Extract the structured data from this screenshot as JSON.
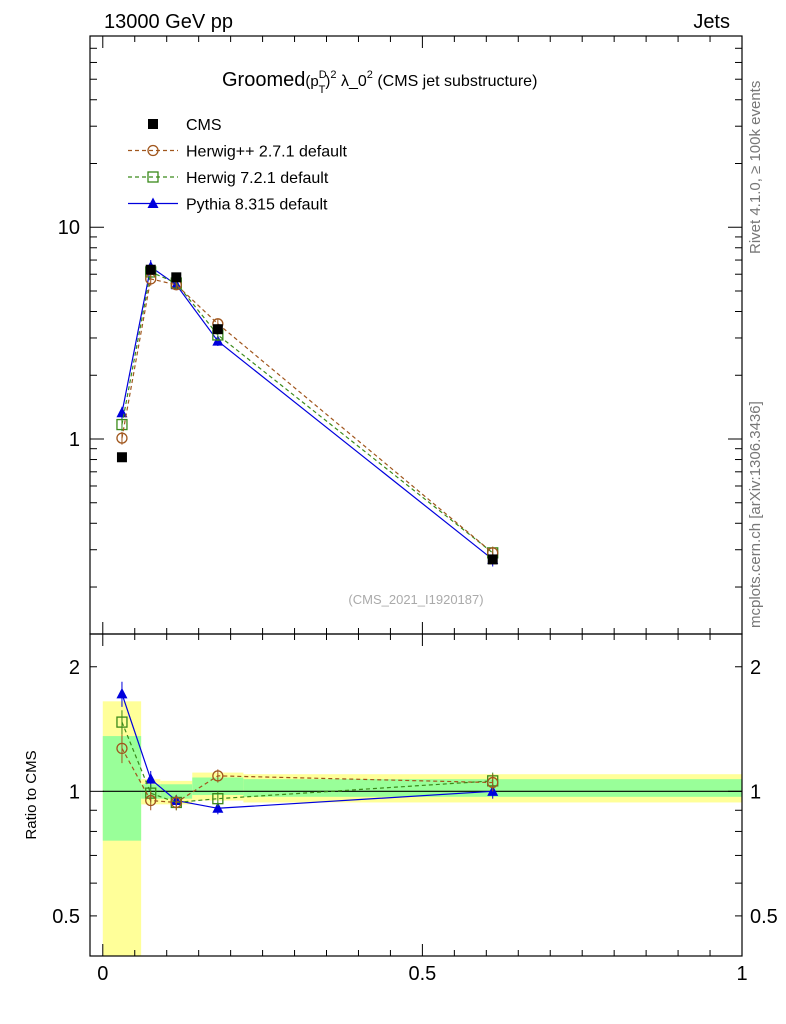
{
  "header": {
    "left": "13000 GeV pp",
    "right": "Jets"
  },
  "side_labels": {
    "rivet": "Rivet 4.1.0, ≥ 100k events",
    "mcplots": "mcplots.cern.ch [arXiv:1306.3436]"
  },
  "chart_data": [
    {
      "type": "line",
      "title_prefix": "Groomed",
      "title_p": "(p",
      "title_sup_D": "D",
      "title_sub_T": "T",
      "title_close": ")",
      "title_sup_2a": "2",
      "title_lambda": " λ_0",
      "title_sup_2b": "2",
      "title_suffix": " (CMS jet substructure)",
      "watermark": "(CMS_2021_I1920187)",
      "yscale": "log",
      "ylim": [
        0.12,
        80
      ],
      "xlim": [
        -0.02,
        1.0
      ],
      "y_tick_labels": [
        {
          "value": 1,
          "label": "1"
        },
        {
          "value": 10,
          "label": "10"
        }
      ],
      "legend": [
        {
          "name": "CMS",
          "color": "#000000",
          "marker": "square-filled",
          "dashed": false
        },
        {
          "name": "Herwig++ 2.7.1 default",
          "color": "#a0561d",
          "marker": "circle-open",
          "dashed": true
        },
        {
          "name": "Herwig 7.2.1 default",
          "color": "#3a8a1a",
          "marker": "square-open",
          "dashed": true
        },
        {
          "name": "Pythia 8.315 default",
          "color": "#0000dd",
          "marker": "triangle-filled",
          "dashed": false
        }
      ],
      "x": [
        0.03,
        0.075,
        0.115,
        0.18,
        0.61
      ],
      "series": [
        {
          "name": "CMS",
          "values": [
            0.82,
            6.3,
            5.8,
            3.3,
            0.27
          ]
        },
        {
          "name": "Herwig++ 2.7.1 default",
          "values": [
            1.01,
            5.7,
            5.35,
            3.5,
            0.29
          ],
          "err": [
            0.07,
            0.4,
            0.3,
            0.2,
            0.02
          ]
        },
        {
          "name": "Herwig 7.2.1 default",
          "values": [
            1.17,
            6.15,
            5.45,
            3.1,
            0.29
          ],
          "err": [
            0.08,
            0.45,
            0.3,
            0.2,
            0.02
          ]
        },
        {
          "name": "Pythia 8.315 default",
          "values": [
            1.33,
            6.5,
            5.35,
            2.9,
            0.27
          ],
          "err": [
            0.09,
            0.5,
            0.3,
            0.15,
            0.02
          ]
        }
      ]
    },
    {
      "type": "line",
      "ylabel": "Ratio to CMS",
      "yscale": "log",
      "ylim": [
        0.4,
        2.4
      ],
      "xlim": [
        -0.02,
        1.0
      ],
      "y_tick_labels": [
        {
          "value": 0.5,
          "label": "0.5"
        },
        {
          "value": 1,
          "label": "1"
        },
        {
          "value": 2,
          "label": "2"
        }
      ],
      "x_tick_labels": [
        {
          "value": 0,
          "label": "0"
        },
        {
          "value": 0.5,
          "label": "0.5"
        },
        {
          "value": 1,
          "label": "1"
        }
      ],
      "bands": [
        {
          "x0": 0.0,
          "x1": 0.06,
          "yellow": [
            0.4,
            1.65
          ],
          "green": [
            0.76,
            1.36
          ]
        },
        {
          "x0": 0.06,
          "x1": 0.09,
          "yellow": [
            0.93,
            1.07
          ],
          "green": [
            0.96,
            1.04
          ]
        },
        {
          "x0": 0.09,
          "x1": 0.14,
          "yellow": [
            0.93,
            1.06
          ],
          "green": [
            0.96,
            1.04
          ]
        },
        {
          "x0": 0.14,
          "x1": 0.22,
          "yellow": [
            0.95,
            1.11
          ],
          "green": [
            0.98,
            1.08
          ]
        },
        {
          "x0": 0.22,
          "x1": 1.0,
          "yellow": [
            0.94,
            1.1
          ],
          "green": [
            0.97,
            1.07
          ]
        }
      ],
      "x": [
        0.03,
        0.075,
        0.115,
        0.18,
        0.61
      ],
      "series": [
        {
          "name": "Herwig++ 2.7.1 default",
          "values": [
            1.27,
            0.95,
            0.94,
            1.09,
            1.05
          ],
          "err": [
            0.1,
            0.05,
            0.04,
            0.04,
            0.05
          ]
        },
        {
          "name": "Herwig 7.2.1 default",
          "values": [
            1.47,
            0.99,
            0.94,
            0.96,
            1.06
          ],
          "err": [
            0.1,
            0.05,
            0.04,
            0.04,
            0.05
          ]
        },
        {
          "name": "Pythia 8.315 default",
          "values": [
            1.72,
            1.07,
            0.95,
            0.91,
            1.0
          ],
          "err": [
            0.12,
            0.05,
            0.03,
            0.03,
            0.04
          ]
        }
      ]
    }
  ]
}
